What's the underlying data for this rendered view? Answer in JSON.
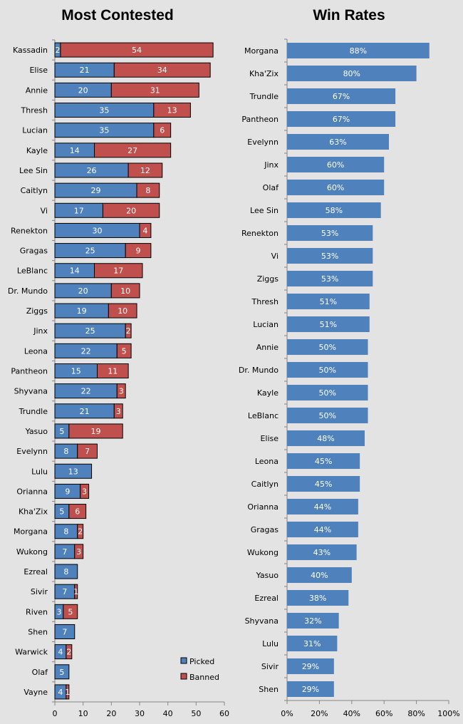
{
  "chart_data": [
    {
      "type": "bar",
      "orientation": "horizontal",
      "stacked": true,
      "title": "Most Contested",
      "categories": [
        "Kassadin",
        "Elise",
        "Annie",
        "Thresh",
        "Lucian",
        "Kayle",
        "Lee Sin",
        "Caitlyn",
        "Vi",
        "Renekton",
        "Gragas",
        "LeBlanc",
        "Dr. Mundo",
        "Ziggs",
        "Jinx",
        "Leona",
        "Pantheon",
        "Shyvana",
        "Trundle",
        "Yasuo",
        "Evelynn",
        "Lulu",
        "Orianna",
        "Kha'Zix",
        "Morgana",
        "Wukong",
        "Ezreal",
        "Sivir",
        "Riven",
        "Shen",
        "Warwick",
        "Olaf",
        "Vayne"
      ],
      "series": [
        {
          "name": "Picked",
          "color": "#4f81bd",
          "values": [
            2,
            21,
            20,
            35,
            35,
            14,
            26,
            29,
            17,
            30,
            25,
            14,
            20,
            19,
            25,
            22,
            15,
            22,
            21,
            5,
            8,
            13,
            9,
            5,
            8,
            7,
            8,
            7,
            3,
            7,
            4,
            5,
            4
          ]
        },
        {
          "name": "Banned",
          "color": "#c0504d",
          "values": [
            54,
            34,
            31,
            13,
            6,
            27,
            12,
            8,
            20,
            4,
            9,
            17,
            10,
            10,
            2,
            5,
            11,
            3,
            3,
            19,
            7,
            0,
            3,
            6,
            2,
            3,
            0,
            1,
            5,
            0,
            2,
            0,
            1
          ]
        }
      ],
      "xlim": [
        0,
        60
      ],
      "xticks": [
        "0",
        "10",
        "20",
        "30",
        "40",
        "50",
        "60"
      ],
      "legend": "bottom-right"
    },
    {
      "type": "bar",
      "orientation": "horizontal",
      "title": "Win Rates",
      "categories": [
        "Morgana",
        "Kha'Zix",
        "Trundle",
        "Pantheon",
        "Evelynn",
        "Jinx",
        "Olaf",
        "Lee Sin",
        "Renekton",
        "Vi",
        "Ziggs",
        "Thresh",
        "Lucian",
        "Annie",
        "Dr. Mundo",
        "Kayle",
        "LeBlanc",
        "Elise",
        "Leona",
        "Caitlyn",
        "Orianna",
        "Gragas",
        "Wukong",
        "Yasuo",
        "Ezreal",
        "Shyvana",
        "Lulu",
        "Sivir",
        "Shen"
      ],
      "values": [
        88,
        80,
        67,
        67,
        63,
        60,
        60,
        58,
        53,
        53,
        53,
        51,
        51,
        50,
        50,
        50,
        50,
        48,
        45,
        45,
        44,
        44,
        43,
        40,
        38,
        32,
        31,
        29,
        29
      ],
      "color": "#4f81bd",
      "xlim": [
        0,
        100
      ],
      "xticks": [
        "0%",
        "20%",
        "40%",
        "60%",
        "80%",
        "100%"
      ]
    }
  ]
}
